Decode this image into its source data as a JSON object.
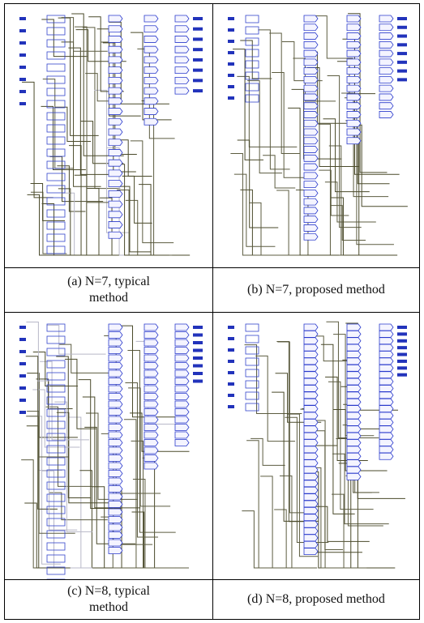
{
  "figure": {
    "panels": [
      {
        "caption": "(a) N=7, typical method"
      },
      {
        "caption": "(b) N=7, proposed method"
      },
      {
        "caption": "(c) N=8, typical method"
      },
      {
        "caption": "(d) N=8, proposed method"
      }
    ]
  }
}
